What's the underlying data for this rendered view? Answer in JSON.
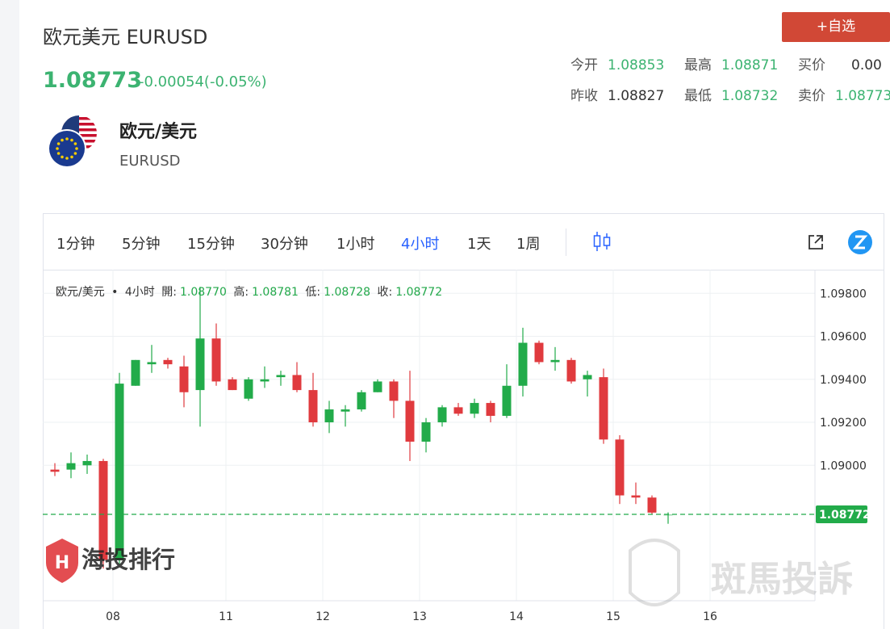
{
  "header": {
    "title": "欧元美元 EURUSD",
    "price": "1.08773",
    "change": "-0.00054(-0.05%)",
    "add_button": "+自选"
  },
  "stats": [
    {
      "label": "今开",
      "value": "1.08853"
    },
    {
      "label": "最高",
      "value": "1.08871"
    },
    {
      "label": "买价",
      "value": "0.00"
    },
    {
      "label": "昨收",
      "value": "1.08827"
    },
    {
      "label": "最低",
      "value": "1.08732"
    },
    {
      "label": "卖价",
      "value": "1.08773"
    }
  ],
  "pair": {
    "name": "欧元/美元",
    "code": "EURUSD"
  },
  "toolbar": {
    "timeframes": [
      "1分钟",
      "5分钟",
      "15分钟",
      "30分钟",
      "1小时",
      "4小时",
      "1天",
      "1周"
    ],
    "active": "4小时"
  },
  "legend": {
    "symbol": "欧元/美元",
    "dot": "•",
    "interval": "4小时",
    "open_label": "開:",
    "open": "1.08770",
    "high_label": "高:",
    "high": "1.08781",
    "low_label": "低:",
    "low": "1.08728",
    "close_label": "收:",
    "close": "1.08772"
  },
  "watermarks": {
    "left": "海投排行",
    "right": "斑馬投訴"
  },
  "colors": {
    "up": "#22ab4a",
    "down": "#e03a3e",
    "price_green": "#3cb371",
    "accent_blue": "#2962ff",
    "button_red": "#d14836"
  },
  "chart_data": {
    "type": "candlestick",
    "y_ticks": [
      "1.09800",
      "1.09600",
      "1.09400",
      "1.09200",
      "1.09000"
    ],
    "y_tick_values": [
      1.098,
      1.096,
      1.094,
      1.092,
      1.09
    ],
    "ylim": [
      1.0837,
      1.0991
    ],
    "x_ticks": [
      {
        "label": "08",
        "index": 3.6
      },
      {
        "label": "11",
        "index": 10.6
      },
      {
        "label": "12",
        "index": 16.6
      },
      {
        "label": "13",
        "index": 22.6
      },
      {
        "label": "14",
        "index": 28.6
      },
      {
        "label": "15",
        "index": 34.6
      },
      {
        "label": "16",
        "index": 40.6
      }
    ],
    "last_price": 1.08772,
    "last_price_label": "1.08772",
    "grid": true,
    "candles": [
      {
        "o": 1.0898,
        "h": 1.0901,
        "l": 1.0895,
        "c": 1.0897
      },
      {
        "o": 1.0898,
        "h": 1.0906,
        "l": 1.0894,
        "c": 1.0901
      },
      {
        "o": 1.09,
        "h": 1.0905,
        "l": 1.0896,
        "c": 1.0902
      },
      {
        "o": 1.0902,
        "h": 1.0903,
        "l": 1.0852,
        "c": 1.0856
      },
      {
        "o": 1.0856,
        "h": 1.0943,
        "l": 1.0854,
        "c": 1.0938
      },
      {
        "o": 1.0937,
        "h": 1.0949,
        "l": 1.0937,
        "c": 1.0949
      },
      {
        "o": 1.0947,
        "h": 1.0956,
        "l": 1.0943,
        "c": 1.0948
      },
      {
        "o": 1.0949,
        "h": 1.095,
        "l": 1.0945,
        "c": 1.0947
      },
      {
        "o": 1.0946,
        "h": 1.0951,
        "l": 1.0927,
        "c": 1.0934
      },
      {
        "o": 1.0935,
        "h": 1.0983,
        "l": 1.0918,
        "c": 1.0959
      },
      {
        "o": 1.0959,
        "h": 1.0966,
        "l": 1.0937,
        "c": 1.0939
      },
      {
        "o": 1.094,
        "h": 1.0941,
        "l": 1.0935,
        "c": 1.0935
      },
      {
        "o": 1.0931,
        "h": 1.0941,
        "l": 1.093,
        "c": 1.094
      },
      {
        "o": 1.0939,
        "h": 1.0946,
        "l": 1.0936,
        "c": 1.094
      },
      {
        "o": 1.0941,
        "h": 1.0944,
        "l": 1.0937,
        "c": 1.0942
      },
      {
        "o": 1.0942,
        "h": 1.0948,
        "l": 1.0934,
        "c": 1.0935
      },
      {
        "o": 1.0935,
        "h": 1.0943,
        "l": 1.0918,
        "c": 1.092
      },
      {
        "o": 1.092,
        "h": 1.093,
        "l": 1.0915,
        "c": 1.0926
      },
      {
        "o": 1.0925,
        "h": 1.0928,
        "l": 1.0918,
        "c": 1.0926
      },
      {
        "o": 1.0926,
        "h": 1.0935,
        "l": 1.0925,
        "c": 1.0934
      },
      {
        "o": 1.0934,
        "h": 1.094,
        "l": 1.0934,
        "c": 1.0939
      },
      {
        "o": 1.0939,
        "h": 1.094,
        "l": 1.0922,
        "c": 1.093
      },
      {
        "o": 1.093,
        "h": 1.0944,
        "l": 1.0902,
        "c": 1.0911
      },
      {
        "o": 1.0911,
        "h": 1.0922,
        "l": 1.0906,
        "c": 1.092
      },
      {
        "o": 1.092,
        "h": 1.0928,
        "l": 1.0918,
        "c": 1.0927
      },
      {
        "o": 1.0927,
        "h": 1.0929,
        "l": 1.0923,
        "c": 1.0924
      },
      {
        "o": 1.0924,
        "h": 1.0931,
        "l": 1.0922,
        "c": 1.0929
      },
      {
        "o": 1.0929,
        "h": 1.093,
        "l": 1.092,
        "c": 1.0923
      },
      {
        "o": 1.0923,
        "h": 1.0947,
        "l": 1.0922,
        "c": 1.0937
      },
      {
        "o": 1.0937,
        "h": 1.0964,
        "l": 1.0932,
        "c": 1.0957
      },
      {
        "o": 1.0957,
        "h": 1.0958,
        "l": 1.0947,
        "c": 1.0948
      },
      {
        "o": 1.0948,
        "h": 1.0955,
        "l": 1.0944,
        "c": 1.0949
      },
      {
        "o": 1.0949,
        "h": 1.095,
        "l": 1.0938,
        "c": 1.0939
      },
      {
        "o": 1.094,
        "h": 1.0944,
        "l": 1.0932,
        "c": 1.0942
      },
      {
        "o": 1.0941,
        "h": 1.0945,
        "l": 1.091,
        "c": 1.0912
      },
      {
        "o": 1.0912,
        "h": 1.0914,
        "l": 1.0882,
        "c": 1.0886
      },
      {
        "o": 1.0886,
        "h": 1.0892,
        "l": 1.0882,
        "c": 1.0885
      },
      {
        "o": 1.0885,
        "h": 1.0886,
        "l": 1.0877,
        "c": 1.0878
      },
      {
        "o": 1.0877,
        "h": 1.08781,
        "l": 1.08728,
        "c": 1.08772
      }
    ]
  }
}
